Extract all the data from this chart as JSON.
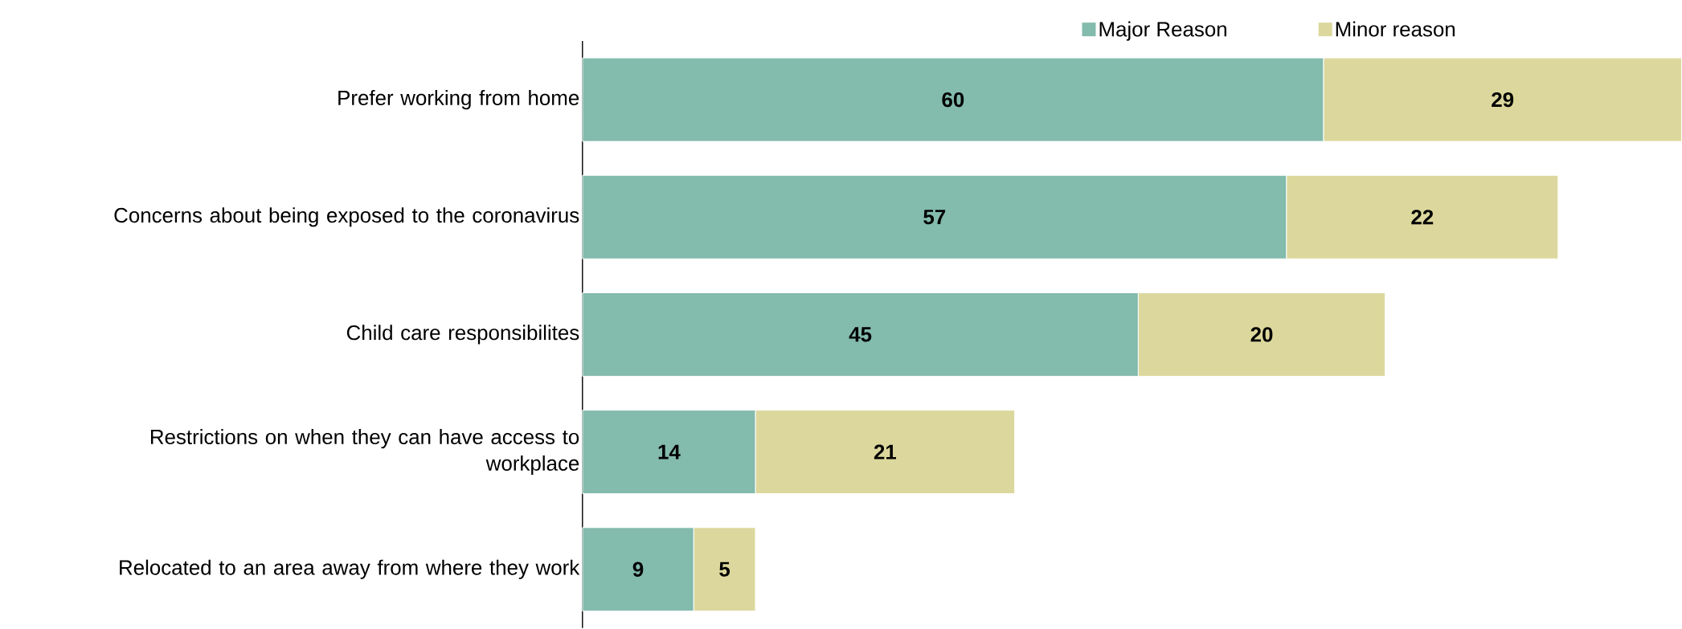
{
  "chart_data": {
    "type": "bar",
    "orientation": "horizontal",
    "stacked": true,
    "data_labels": true,
    "legend": "top",
    "categories": [
      "Prefer working from home",
      "Concerns about being exposed to the coronavirus",
      "Child care responsibilites",
      "Restrictions on when they can have access to workplace",
      "Relocated to an area away from where they work"
    ],
    "series": [
      {
        "name": "Major Reason",
        "color": "#83bbad",
        "values": [
          60,
          57,
          45,
          14,
          9
        ]
      },
      {
        "name": "Minor reason",
        "color": "#dcd89d",
        "values": [
          29,
          22,
          20,
          21,
          5
        ]
      }
    ]
  }
}
